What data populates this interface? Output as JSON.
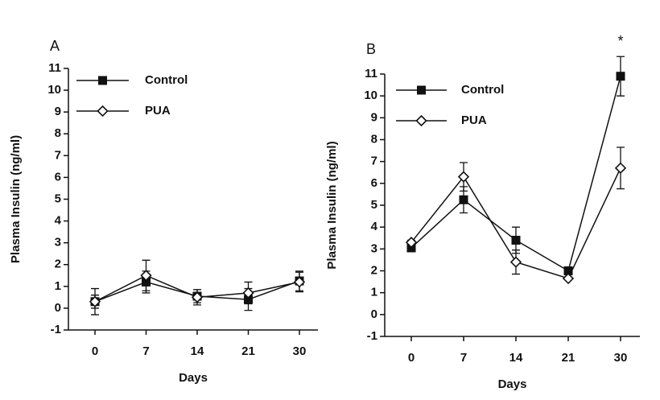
{
  "chart_data": [
    {
      "type": "line",
      "title": "A",
      "x_label": "Days",
      "y_label": "Plasma Insulin (ng/ml)",
      "categories": [
        "0",
        "7",
        "14",
        "21",
        "30"
      ],
      "ylim": [
        -1,
        11
      ],
      "yticks": [
        -1,
        0,
        1,
        2,
        3,
        4,
        5,
        6,
        7,
        8,
        9,
        10,
        11
      ],
      "legend": "top-left",
      "series": [
        {
          "name": "Control",
          "color": "#111111",
          "marker": "square",
          "values": [
            0.3,
            1.2,
            0.55,
            0.4,
            1.25
          ],
          "errors": [
            0.6,
            0.5,
            0.3,
            0.5,
            0.45
          ]
        },
        {
          "name": "PUA",
          "color": "#111111",
          "marker": "diamond",
          "values": [
            0.3,
            1.5,
            0.5,
            0.7,
            1.2
          ],
          "errors": [
            0.3,
            0.7,
            0.35,
            0.5,
            0.45
          ]
        }
      ]
    },
    {
      "type": "line",
      "title": "B",
      "x_label": "Days",
      "y_label": "Plasma Insulin (ng/ml)",
      "categories": [
        "0",
        "7",
        "14",
        "21",
        "30"
      ],
      "ylim": [
        -1,
        11
      ],
      "yticks": [
        -1,
        0,
        1,
        2,
        3,
        4,
        5,
        6,
        7,
        8,
        9,
        10,
        11
      ],
      "legend": "top-left",
      "annotation": "*",
      "series": [
        {
          "name": "Control",
          "color": "#111111",
          "marker": "square",
          "values": [
            3.05,
            5.25,
            3.4,
            2.0,
            10.9
          ],
          "errors": [
            0.1,
            0.6,
            0.6,
            0.1,
            0.9
          ]
        },
        {
          "name": "PUA",
          "color": "#111111",
          "marker": "diamond",
          "values": [
            3.3,
            6.3,
            2.4,
            1.65,
            6.7
          ],
          "errors": [
            0.1,
            0.65,
            0.55,
            0.05,
            0.95
          ]
        }
      ]
    }
  ]
}
